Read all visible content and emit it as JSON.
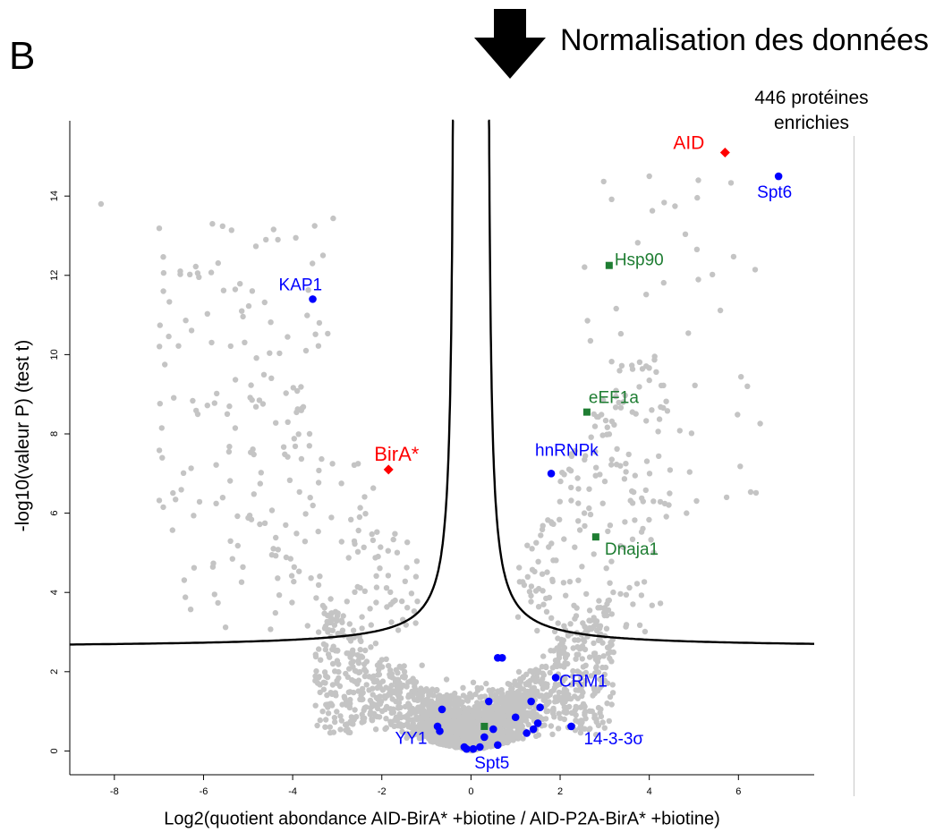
{
  "panel_label": "B",
  "header": {
    "normalisation_label": "Normalisation des données"
  },
  "annotation": {
    "line1": "446 protéines",
    "line2": "enrichies"
  },
  "chart_data": {
    "type": "scatter",
    "title": "",
    "xlabel": "Log2(quotient abondance AID-BirA* +biotine / AID-P2A-BirA* +biotine)",
    "ylabel": "-log10(valeur P) (test t)",
    "xlim": [
      -9,
      7.7
    ],
    "ylim": [
      -0.6,
      15.9
    ],
    "x_ticks": [
      "-8",
      "-6",
      "-4",
      "-2",
      "0",
      "2",
      "4",
      "6"
    ],
    "y_ticks": [
      "0",
      "2",
      "4",
      "6",
      "8",
      "10",
      "12",
      "14"
    ],
    "grid": false,
    "background_color": "#c4c4c4",
    "significance_curve": {
      "color": "#000000",
      "baseline": 2.6,
      "asymptote_x": [
        -0.35,
        0.35
      ]
    },
    "labeled_points": [
      {
        "label": "AID",
        "x": 5.7,
        "y": 15.1,
        "group": "bait",
        "color": "#ff0000",
        "marker": "diamond"
      },
      {
        "label": "BirA*",
        "x": -1.85,
        "y": 7.1,
        "group": "bait",
        "color": "#ff0000",
        "marker": "diamond"
      },
      {
        "label": "Spt6",
        "x": 6.9,
        "y": 14.5,
        "group": "known",
        "color": "#0000ff",
        "marker": "circle"
      },
      {
        "label": "KAP1",
        "x": -3.55,
        "y": 11.4,
        "group": "known",
        "color": "#0000ff",
        "marker": "circle"
      },
      {
        "label": "hnRNPk",
        "x": 1.8,
        "y": 7.0,
        "group": "known",
        "color": "#0000ff",
        "marker": "circle"
      },
      {
        "label": "CRM1",
        "x": 1.9,
        "y": 1.85,
        "group": "known",
        "color": "#0000ff",
        "marker": "circle"
      },
      {
        "label": "YY1",
        "x": -0.7,
        "y": 0.5,
        "group": "known",
        "color": "#0000ff",
        "marker": "circle"
      },
      {
        "label": "Spt5",
        "x": 0.6,
        "y": 0.15,
        "group": "known",
        "color": "#0000ff",
        "marker": "circle"
      },
      {
        "label": "14-3-3σ",
        "x": 2.25,
        "y": 0.62,
        "group": "known",
        "color": "#0000ff",
        "marker": "circle"
      },
      {
        "label": "Hsp90",
        "x": 3.1,
        "y": 12.25,
        "group": "chaperone",
        "color": "#1e7d32",
        "marker": "square"
      },
      {
        "label": "eEF1a",
        "x": 2.6,
        "y": 8.55,
        "group": "chaperone",
        "color": "#1e7d32",
        "marker": "square"
      },
      {
        "label": "Dnaja1",
        "x": 2.8,
        "y": 5.4,
        "group": "chaperone",
        "color": "#1e7d32",
        "marker": "square"
      }
    ],
    "unlabeled_points": [
      {
        "x": 0.6,
        "y": 2.35,
        "group": "known"
      },
      {
        "x": 0.7,
        "y": 2.35,
        "group": "known"
      },
      {
        "x": 0.4,
        "y": 1.25,
        "group": "known"
      },
      {
        "x": 1.35,
        "y": 1.25,
        "group": "known"
      },
      {
        "x": 1.55,
        "y": 1.1,
        "group": "known"
      },
      {
        "x": 1.0,
        "y": 0.85,
        "group": "known"
      },
      {
        "x": 1.5,
        "y": 0.7,
        "group": "known"
      },
      {
        "x": 1.4,
        "y": 0.55,
        "group": "known"
      },
      {
        "x": 1.25,
        "y": 0.45,
        "group": "known"
      },
      {
        "x": 0.5,
        "y": 0.55,
        "group": "known"
      },
      {
        "x": 0.3,
        "y": 0.35,
        "group": "known"
      },
      {
        "x": 0.2,
        "y": 0.1,
        "group": "known"
      },
      {
        "x": 0.05,
        "y": 0.05,
        "group": "known"
      },
      {
        "x": -0.1,
        "y": 0.05,
        "group": "known"
      },
      {
        "x": -0.15,
        "y": 0.1,
        "group": "known"
      },
      {
        "x": -0.65,
        "y": 1.05,
        "group": "known"
      },
      {
        "x": -0.75,
        "y": 0.62,
        "group": "known"
      },
      {
        "x": 0.3,
        "y": 0.62,
        "group": "chaperone"
      }
    ]
  }
}
